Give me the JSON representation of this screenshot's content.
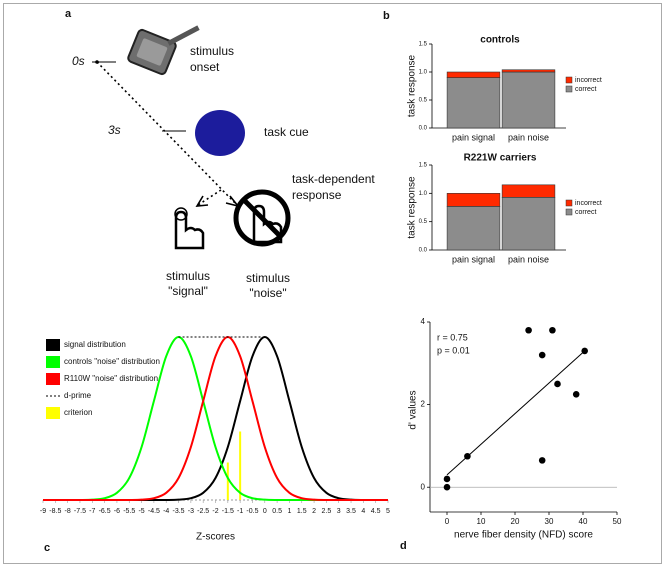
{
  "panel_labels": [
    "a",
    "b",
    "c",
    "d"
  ],
  "diagram": {
    "time_0": "0s",
    "stimulus_onset": [
      "stimulus",
      "onset"
    ],
    "time_3": "3s",
    "task_cue": "task cue",
    "response": [
      "task-dependent",
      "response"
    ],
    "signal": [
      "stimulus",
      "\"signal\""
    ],
    "noise": [
      "stimulus",
      "\"noise\""
    ]
  },
  "chart_data": [
    {
      "type": "bar",
      "stacked": true,
      "title": "controls",
      "y_label": "task response",
      "categories": [
        "pain signal",
        "pain noise"
      ],
      "series": [
        {
          "name": "correct",
          "color": "#8c8c8c",
          "values": [
            0.9,
            1.0
          ]
        },
        {
          "name": "incorrect",
          "color": "#ff2a00",
          "values": [
            0.1,
            0.04
          ]
        }
      ],
      "ylim": [
        0,
        1.5
      ],
      "yticks": [
        {
          "value": 0,
          "label": "0.0"
        },
        {
          "value": 0.5,
          "label": "0.5"
        },
        {
          "value": 1,
          "label": "1.0"
        },
        {
          "value": 1.5,
          "label": "1.5"
        }
      ]
    },
    {
      "type": "bar",
      "stacked": true,
      "title": "R221W carriers",
      "y_label": "task response",
      "categories": [
        "pain signal",
        "pain noise"
      ],
      "series": [
        {
          "name": "correct",
          "color": "#8c8c8c",
          "values": [
            0.77,
            0.93
          ]
        },
        {
          "name": "incorrect",
          "color": "#ff2a00",
          "values": [
            0.23,
            0.22
          ]
        }
      ],
      "ylim": [
        0,
        1.5
      ],
      "yticks": [
        {
          "value": 0,
          "label": "0.0"
        },
        {
          "value": 0.5,
          "label": "0.5"
        },
        {
          "value": 1,
          "label": "1.0"
        },
        {
          "value": 1.5,
          "label": "1.5"
        }
      ]
    },
    {
      "type": "line",
      "x_label": "Z-scores",
      "x": [
        -9,
        -8.5,
        -8,
        -7.5,
        -7,
        -6.5,
        -6,
        -5.5,
        -5,
        -4.5,
        -4,
        -3.5,
        -3,
        -2.5,
        -2,
        -1.5,
        -1,
        -0.5,
        0,
        0.5,
        1,
        1.5,
        2,
        2.5,
        3,
        3.5,
        4,
        4.5,
        5
      ],
      "series": [
        {
          "name": "signal distribution",
          "color": "#000000",
          "values": [
            0,
            0,
            0,
            0,
            0,
            0,
            0,
            0,
            0,
            0,
            0,
            0.002,
            0.011,
            0.044,
            0.135,
            0.325,
            0.607,
            0.882,
            1,
            0.882,
            0.607,
            0.325,
            0.135,
            0.044,
            0.011,
            0.002,
            0,
            0,
            0
          ]
        },
        {
          "name": "controls \"noise\" distribution",
          "color": "#00ff00",
          "values": [
            0,
            0,
            0,
            0,
            0.002,
            0.011,
            0.044,
            0.135,
            0.325,
            0.607,
            0.882,
            1,
            0.882,
            0.607,
            0.325,
            0.135,
            0.044,
            0.011,
            0.002,
            0,
            0,
            0,
            0,
            0,
            0,
            0,
            0,
            0,
            0
          ]
        },
        {
          "name": "R110W \"noise\" distribution",
          "color": "#ff0000",
          "values": [
            0,
            0,
            0,
            0,
            0,
            0,
            0,
            0,
            0.002,
            0.011,
            0.044,
            0.135,
            0.325,
            0.607,
            0.882,
            1,
            0.882,
            0.607,
            0.325,
            0.135,
            0.044,
            0.011,
            0.002,
            0,
            0,
            0,
            0,
            0,
            0
          ]
        }
      ],
      "d_prime": {
        "name": "d-prime",
        "x": [
          -3.5,
          0
        ]
      },
      "criterion": {
        "name": "criterion",
        "color": "#ffff00",
        "x": [
          -1.5,
          -1
        ],
        "values": [
          0.23,
          0.42
        ]
      },
      "xlim": [
        -9,
        5
      ],
      "ylim": [
        0,
        1
      ],
      "xticks": [
        -9,
        -8.5,
        -8,
        -7.5,
        -7,
        -6.5,
        -6,
        -5.5,
        -5,
        -4.5,
        -4,
        -3.5,
        -3,
        -2.5,
        -2,
        -1.5,
        -1,
        -0.5,
        0,
        0.5,
        1,
        1.5,
        2,
        2.5,
        3,
        3.5,
        4,
        4.5,
        5
      ]
    },
    {
      "type": "scatter",
      "x_label": "nerve fiber density (NFD) score",
      "y_label": "d' values",
      "annotations": [
        "r = 0.75",
        "p = 0.01"
      ],
      "x": [
        0,
        0,
        6,
        24,
        28,
        28,
        31,
        32.5,
        38,
        40.5
      ],
      "values": [
        0.2,
        0,
        0.75,
        3.8,
        3.2,
        0.65,
        3.8,
        2.5,
        2.25,
        3.3
      ],
      "color": "#000000",
      "fit": {
        "x": [
          0,
          40.5
        ],
        "values": [
          0.3,
          3.3
        ]
      },
      "xlim": [
        -5,
        50
      ],
      "ylim": [
        -0.6,
        4
      ],
      "xticks": [
        0,
        10,
        20,
        30,
        40,
        50
      ],
      "yticks": [
        0,
        2,
        4
      ]
    }
  ]
}
